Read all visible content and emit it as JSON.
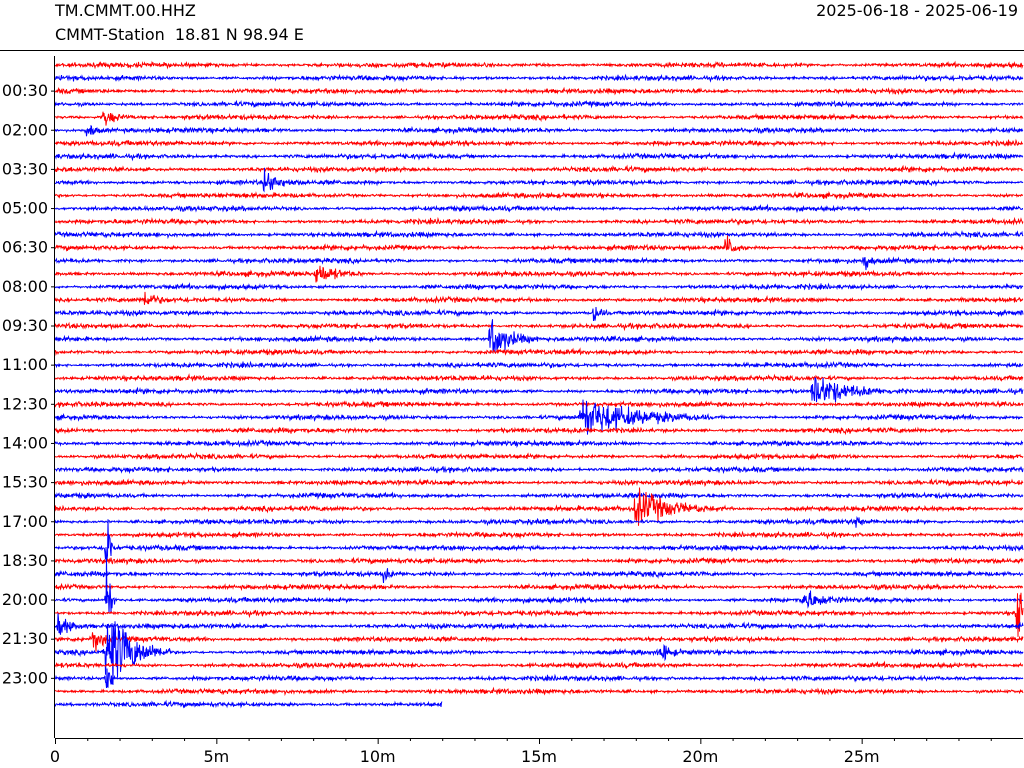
{
  "header": {
    "station_code": "TM.CMMT.00.HHZ",
    "station_info": "CMMT-Station  18.81 N 98.94 E",
    "date_range": "2025-06-18 - 2025-06-19"
  },
  "chart_data": {
    "type": "line",
    "title": "",
    "xlabel": "",
    "ylabel": "",
    "colors": [
      "#ff0000",
      "#0000ff"
    ],
    "trace_count": 50,
    "trace_interval_minutes": 30,
    "last_trace_minutes": 12,
    "xlim": [
      0,
      30
    ],
    "x_major_ticks": [
      0,
      5,
      10,
      15,
      20,
      25
    ],
    "x_tick_labels": [
      "0",
      "5m",
      "10m",
      "15m",
      "20m",
      "25m"
    ],
    "x_minor_step": 1,
    "row_labels": [
      {
        "row": 2,
        "label": "00:30"
      },
      {
        "row": 5,
        "label": "02:00"
      },
      {
        "row": 8,
        "label": "03:30"
      },
      {
        "row": 11,
        "label": "05:00"
      },
      {
        "row": 14,
        "label": "06:30"
      },
      {
        "row": 17,
        "label": "08:00"
      },
      {
        "row": 20,
        "label": "09:30"
      },
      {
        "row": 23,
        "label": "11:00"
      },
      {
        "row": 26,
        "label": "12:30"
      },
      {
        "row": 29,
        "label": "14:00"
      },
      {
        "row": 32,
        "label": "15:30"
      },
      {
        "row": 35,
        "label": "17:00"
      },
      {
        "row": 38,
        "label": "18:30"
      },
      {
        "row": 41,
        "label": "20:00"
      },
      {
        "row": 44,
        "label": "21:30"
      },
      {
        "row": 47,
        "label": "23:00"
      }
    ],
    "events": [
      {
        "row": 4,
        "minute": 1.5,
        "amplitude": 1.3,
        "duration": 1.0
      },
      {
        "row": 5,
        "minute": 1.0,
        "amplitude": 1.2,
        "duration": 0.6
      },
      {
        "row": 9,
        "minute": 6.5,
        "amplitude": 1.8,
        "duration": 1.0
      },
      {
        "row": 14,
        "minute": 20.8,
        "amplitude": 1.9,
        "duration": 0.7
      },
      {
        "row": 15,
        "minute": 25.1,
        "amplitude": 1.8,
        "duration": 0.3
      },
      {
        "row": 16,
        "minute": 8.1,
        "amplitude": 1.6,
        "duration": 1.5
      },
      {
        "row": 18,
        "minute": 2.8,
        "amplitude": 1.4,
        "duration": 0.6
      },
      {
        "row": 19,
        "minute": 16.7,
        "amplitude": 1.5,
        "duration": 0.5
      },
      {
        "row": 21,
        "minute": 13.5,
        "amplitude": 3.3,
        "duration": 1.5
      },
      {
        "row": 25,
        "minute": 23.5,
        "amplitude": 2.5,
        "duration": 3.0
      },
      {
        "row": 27,
        "minute": 16.3,
        "amplitude": 3.0,
        "duration": 4.0
      },
      {
        "row": 34,
        "minute": 18.0,
        "amplitude": 2.6,
        "duration": 3.0
      },
      {
        "row": 35,
        "minute": 24.8,
        "amplitude": 1.2,
        "duration": 0.3
      },
      {
        "row": 37,
        "minute": 1.6,
        "amplitude": 11.0,
        "duration": 0.2
      },
      {
        "row": 39,
        "minute": 10.2,
        "amplitude": 1.3,
        "duration": 0.3
      },
      {
        "row": 41,
        "minute": 1.6,
        "amplitude": 8.0,
        "duration": 0.3
      },
      {
        "row": 41,
        "minute": 23.2,
        "amplitude": 1.6,
        "duration": 1.3
      },
      {
        "row": 42,
        "minute": 29.8,
        "amplitude": 6.0,
        "duration": 0.6
      },
      {
        "row": 43,
        "minute": 0.1,
        "amplitude": 1.8,
        "duration": 1.0
      },
      {
        "row": 44,
        "minute": 1.2,
        "amplitude": 2.4,
        "duration": 0.6
      },
      {
        "row": 45,
        "minute": 1.6,
        "amplitude": 7.0,
        "duration": 2.0
      },
      {
        "row": 45,
        "minute": 18.8,
        "amplitude": 1.5,
        "duration": 0.6
      },
      {
        "row": 47,
        "minute": 1.6,
        "amplitude": 4.0,
        "duration": 0.3
      }
    ]
  }
}
